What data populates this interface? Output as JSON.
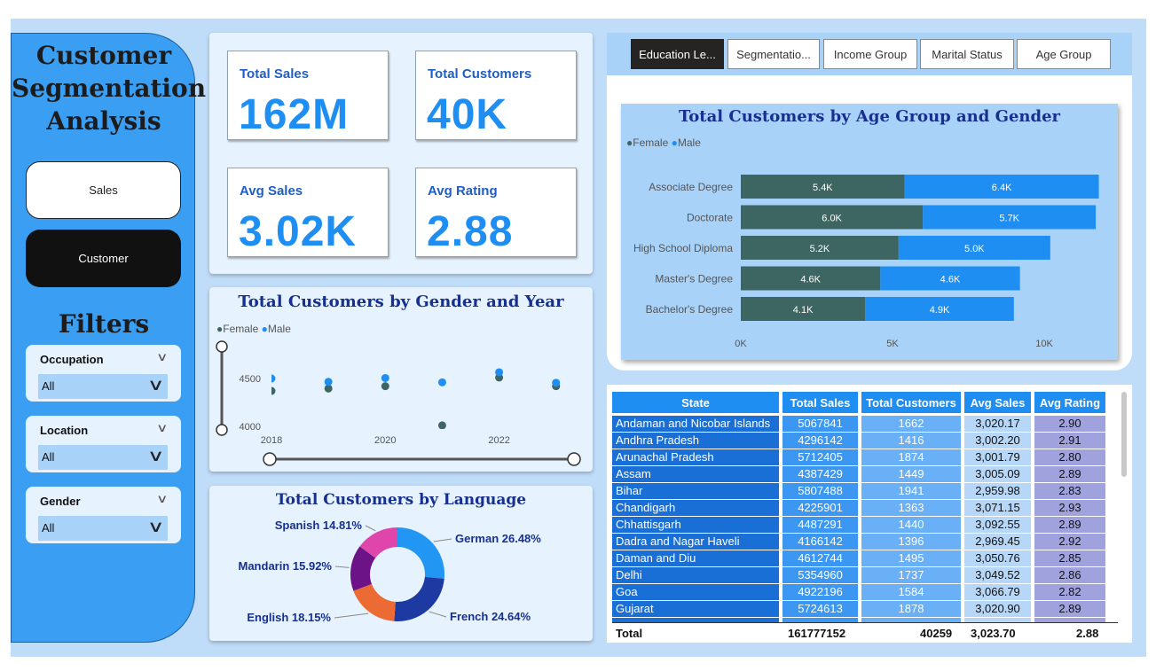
{
  "sidebar": {
    "title_lines": [
      "Customer",
      "Segmentation",
      "Analysis"
    ],
    "nav": {
      "sales": "Sales",
      "customer": "Customer"
    },
    "filters_title": "Filters",
    "slicers": [
      {
        "label": "Occupation",
        "value": "All"
      },
      {
        "label": "Location",
        "value": "All"
      },
      {
        "label": "Gender",
        "value": "All"
      }
    ]
  },
  "kpis": {
    "total_sales": {
      "label": "Total Sales",
      "value": "162M"
    },
    "total_customers": {
      "label": "Total Customers",
      "value": "40K"
    },
    "avg_sales": {
      "label": "Avg Sales",
      "value": "3.02K"
    },
    "avg_rating": {
      "label": "Avg Rating",
      "value": "2.88"
    }
  },
  "tabs": [
    "Education Le...",
    "Segmentatio...",
    "Income Group",
    "Marital Status",
    "Age Group"
  ],
  "colors": {
    "female": "#3d6663",
    "male": "#1e8ef2",
    "accent": "#1e8ef2",
    "title": "#17308f"
  },
  "chart_data": [
    {
      "type": "scatter",
      "title": "Total Customers by Gender and Year",
      "legend": [
        "Female",
        "Male"
      ],
      "legend_position": "top-left",
      "x": [
        2018,
        2019,
        2020,
        2021,
        2022,
        2023
      ],
      "x_ticks": [
        "2018",
        "2020",
        "2022"
      ],
      "y_ticks": [
        "4500",
        "4000"
      ],
      "ylim": [
        4000,
        4600
      ],
      "series": [
        {
          "name": "Female",
          "values": [
            4370,
            4395,
            4420,
            4010,
            4510,
            4420
          ]
        },
        {
          "name": "Male",
          "values": [
            4500,
            4465,
            4505,
            4460,
            4565,
            4455
          ]
        }
      ]
    },
    {
      "type": "pie",
      "title": "Total Customers by Language",
      "slices": [
        {
          "label": "German 26.48%",
          "value": 26.48,
          "color": "#2196f3"
        },
        {
          "label": "French 24.64%",
          "value": 24.64,
          "color": "#1d3aa3"
        },
        {
          "label": "English 18.15%",
          "value": 18.15,
          "color": "#ec6b35"
        },
        {
          "label": "Mandarin 15.92%",
          "value": 15.92,
          "color": "#6c1387"
        },
        {
          "label": "Spanish 14.81%",
          "value": 14.81,
          "color": "#e045ab"
        }
      ]
    },
    {
      "type": "bar",
      "orientation": "horizontal-stacked",
      "title": "Total Customers by Age Group and Gender",
      "legend": [
        "Female",
        "Male"
      ],
      "legend_position": "top-left",
      "categories": [
        "Associate Degree",
        "Doctorate",
        "High School Diploma",
        "Master's Degree",
        "Bachelor's Degree"
      ],
      "series": [
        {
          "name": "Female",
          "values": [
            5.4,
            6.0,
            5.2,
            4.6,
            4.1
          ],
          "labels": [
            "5.4K",
            "6.0K",
            "5.2K",
            "4.6K",
            "4.1K"
          ]
        },
        {
          "name": "Male",
          "values": [
            6.4,
            5.7,
            5.0,
            4.6,
            4.9
          ],
          "labels": [
            "6.4K",
            "5.7K",
            "5.0K",
            "4.6K",
            "4.9K"
          ]
        }
      ],
      "x_ticks": [
        "0K",
        "5K",
        "10K"
      ],
      "xlim": [
        0,
        12
      ]
    },
    {
      "type": "table",
      "columns": [
        "State",
        "Total Sales",
        "Total Customers",
        "Avg Sales",
        "Avg Rating"
      ],
      "rows": [
        [
          "Andaman and Nicobar Islands",
          "5067841",
          "1662",
          "3,020.17",
          "2.90"
        ],
        [
          "Andhra Pradesh",
          "4296142",
          "1416",
          "3,002.20",
          "2.91"
        ],
        [
          "Arunachal Pradesh",
          "5712405",
          "1874",
          "3,001.79",
          "2.80"
        ],
        [
          "Assam",
          "4387429",
          "1449",
          "3,005.09",
          "2.89"
        ],
        [
          "Bihar",
          "5807488",
          "1941",
          "2,959.98",
          "2.83"
        ],
        [
          "Chandigarh",
          "4225901",
          "1363",
          "3,071.15",
          "2.93"
        ],
        [
          "Chhattisgarh",
          "4487291",
          "1440",
          "3,092.55",
          "2.89"
        ],
        [
          "Dadra and Nagar Haveli",
          "4166142",
          "1396",
          "2,969.45",
          "2.92"
        ],
        [
          "Daman and Diu",
          "4612744",
          "1495",
          "3,050.76",
          "2.85"
        ],
        [
          "Delhi",
          "5354960",
          "1737",
          "3,049.52",
          "2.86"
        ],
        [
          "Goa",
          "4922196",
          "1584",
          "3,066.79",
          "2.82"
        ],
        [
          "Gujarat",
          "5724613",
          "1878",
          "3,020.90",
          "2.89"
        ]
      ],
      "total": [
        "Total",
        "161777152",
        "40259",
        "3,023.70",
        "2.88"
      ]
    }
  ]
}
